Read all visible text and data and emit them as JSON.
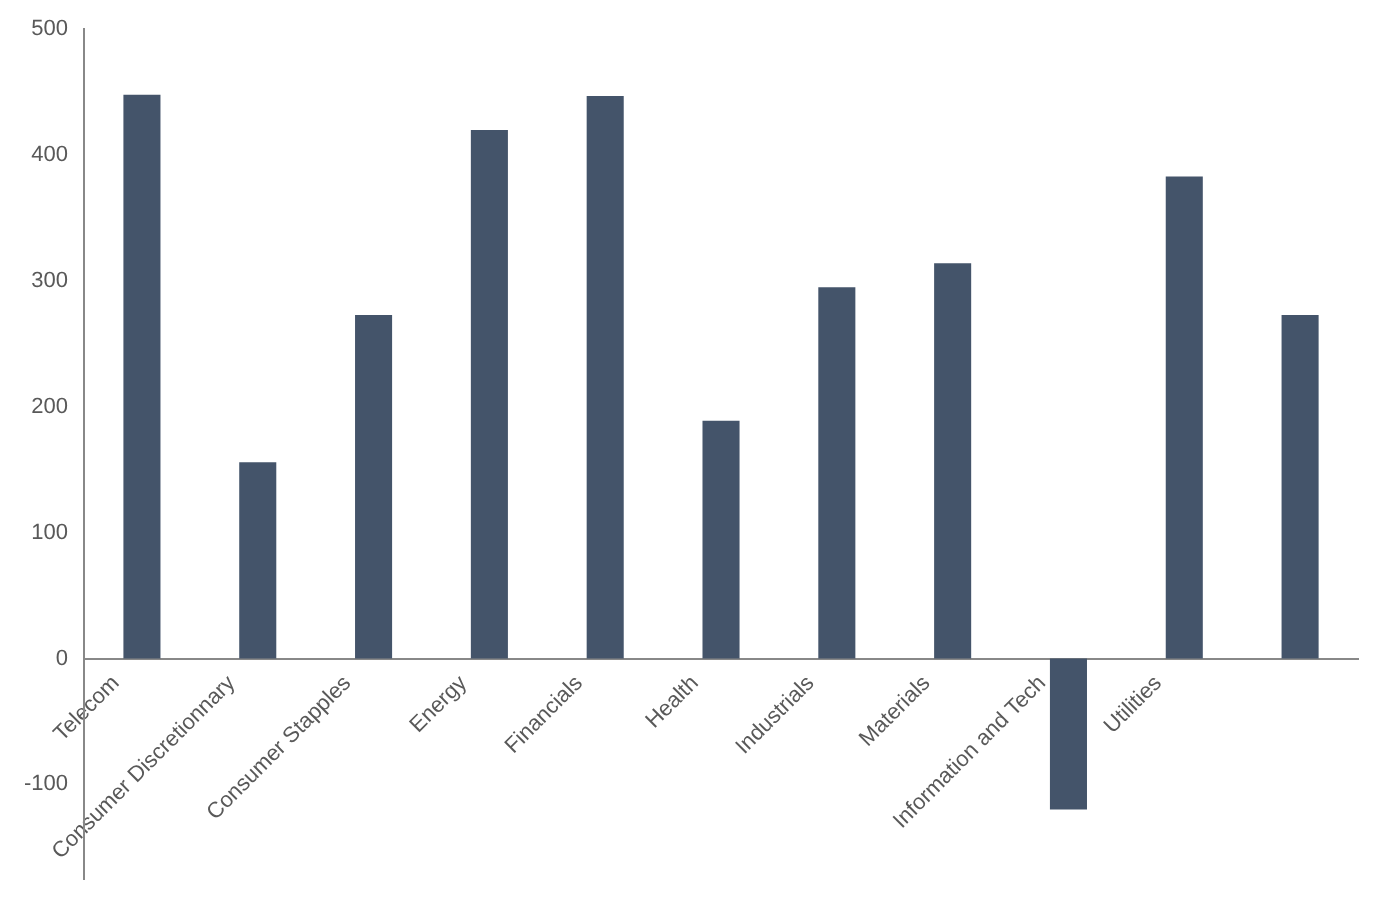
{
  "chart_data": {
    "type": "bar",
    "categories": [
      "Telecom",
      "Consumer Discretionnary",
      "Consumer Stapples",
      "Energy",
      "Financials",
      "Health",
      "Industrials",
      "Materials",
      "Information and Tech",
      "Utilities",
      null
    ],
    "values": [
      448,
      156,
      273,
      420,
      447,
      189,
      295,
      314,
      -120,
      383,
      273
    ],
    "color": "#44546a",
    "ylim": [
      -175,
      500
    ],
    "yticks": [
      -100,
      0,
      100,
      200,
      300,
      400,
      500
    ]
  }
}
